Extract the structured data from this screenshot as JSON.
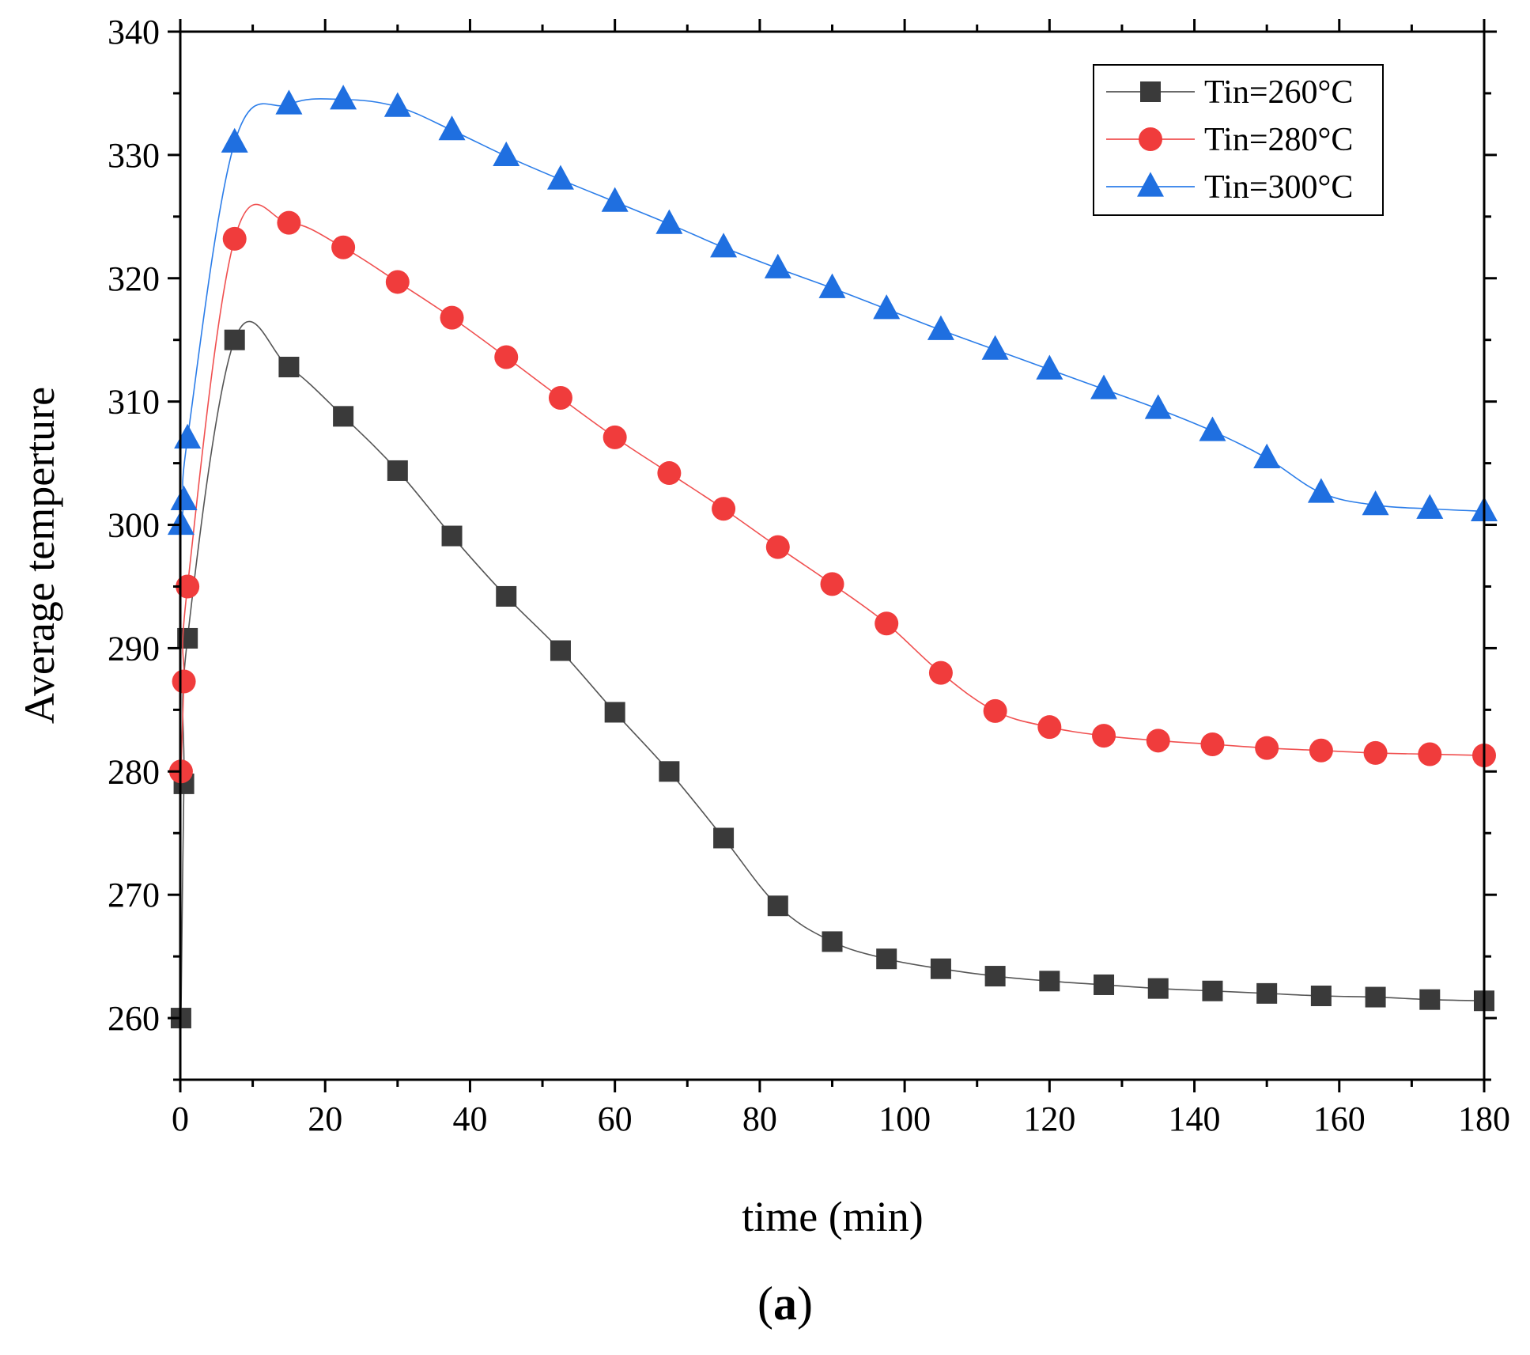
{
  "chart_data": {
    "type": "line",
    "title": "",
    "xlabel": "time (min)",
    "ylabel": "Average temperture",
    "xlim": [
      0,
      180
    ],
    "ylim": [
      255,
      340
    ],
    "xticks": [
      0,
      20,
      40,
      60,
      80,
      100,
      120,
      140,
      160,
      180
    ],
    "yticks": [
      260,
      270,
      280,
      290,
      300,
      310,
      320,
      330,
      340
    ],
    "x_tick_labels": [
      "0",
      "20",
      "40",
      "60",
      "80",
      "100",
      "120",
      "140",
      "160",
      "180"
    ],
    "y_tick_labels": [
      "260",
      "270",
      "280",
      "290",
      "300",
      "310",
      "320",
      "330",
      "340"
    ],
    "grid": false,
    "legend_position": "top-right",
    "caption": {
      "open": "(",
      "letter": "a",
      "close": ")"
    },
    "series": [
      {
        "name": "Tin=260°C",
        "color": "#3a3a3a",
        "line_color": "#555555",
        "marker": "square",
        "x": [
          0.1,
          0.5,
          1,
          7.5,
          15,
          22.5,
          30,
          37.5,
          45,
          52.5,
          60,
          67.5,
          75,
          82.5,
          90,
          97.5,
          105,
          112.5,
          120,
          127.5,
          135,
          142.5,
          150,
          157.5,
          165,
          172.5,
          180
        ],
        "y": [
          260,
          279,
          290.8,
          315,
          312.8,
          308.8,
          304.4,
          299.1,
          294.2,
          289.8,
          284.8,
          280,
          274.6,
          269.1,
          266.2,
          264.8,
          264,
          263.4,
          263,
          262.7,
          262.4,
          262.2,
          262,
          261.8,
          261.7,
          261.5,
          261.4
        ]
      },
      {
        "name": "Tin=280°C",
        "color": "#f03c3c",
        "line_color": "#f05050",
        "marker": "circle",
        "x": [
          0.1,
          0.5,
          1,
          7.5,
          15,
          22.5,
          30,
          37.5,
          45,
          52.5,
          60,
          67.5,
          75,
          82.5,
          90,
          97.5,
          105,
          112.5,
          120,
          127.5,
          135,
          142.5,
          150,
          157.5,
          165,
          172.5,
          180
        ],
        "y": [
          280,
          287.3,
          295,
          323.2,
          324.5,
          322.5,
          319.7,
          316.8,
          313.6,
          310.3,
          307.1,
          304.2,
          301.3,
          298.2,
          295.2,
          292,
          288,
          284.9,
          283.6,
          282.9,
          282.5,
          282.2,
          281.9,
          281.7,
          281.5,
          281.4,
          281.3
        ]
      },
      {
        "name": "Tin=300°C",
        "color": "#1f6fe0",
        "line_color": "#2b7de9",
        "marker": "triangle",
        "x": [
          0.1,
          0.5,
          1,
          7.5,
          15,
          22.5,
          30,
          37.5,
          45,
          52.5,
          60,
          67.5,
          75,
          82.5,
          90,
          97.5,
          105,
          112.5,
          120,
          127.5,
          135,
          142.5,
          150,
          157.5,
          165,
          172.5,
          180
        ],
        "y": [
          300,
          302,
          307,
          331,
          334.1,
          334.5,
          333.9,
          332,
          329.9,
          328,
          326.2,
          324.4,
          322.5,
          320.8,
          319.2,
          317.5,
          315.8,
          314.2,
          312.6,
          311,
          309.4,
          307.6,
          305.4,
          302.6,
          301.6,
          301.3,
          301.1
        ]
      }
    ]
  }
}
